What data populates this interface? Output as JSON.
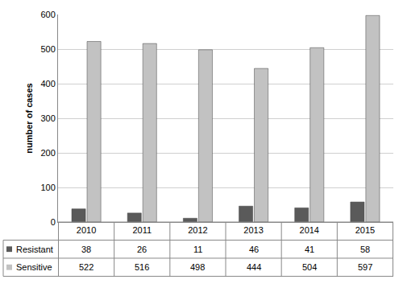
{
  "chart_data": {
    "type": "bar",
    "y_label": "number of cases",
    "categories": [
      "2010",
      "2011",
      "2012",
      "2013",
      "2014",
      "2015"
    ],
    "series": [
      {
        "name": "Resistant",
        "color": "#5a5a5a",
        "values": [
          38,
          26,
          11,
          46,
          41,
          58
        ]
      },
      {
        "name": "Sensitive",
        "color": "#c2c2c2",
        "values": [
          522,
          516,
          498,
          444,
          504,
          597
        ]
      }
    ],
    "ylim": [
      0,
      600
    ],
    "yticks": [
      0,
      100,
      200,
      300,
      400,
      500,
      600
    ],
    "grid": true
  }
}
